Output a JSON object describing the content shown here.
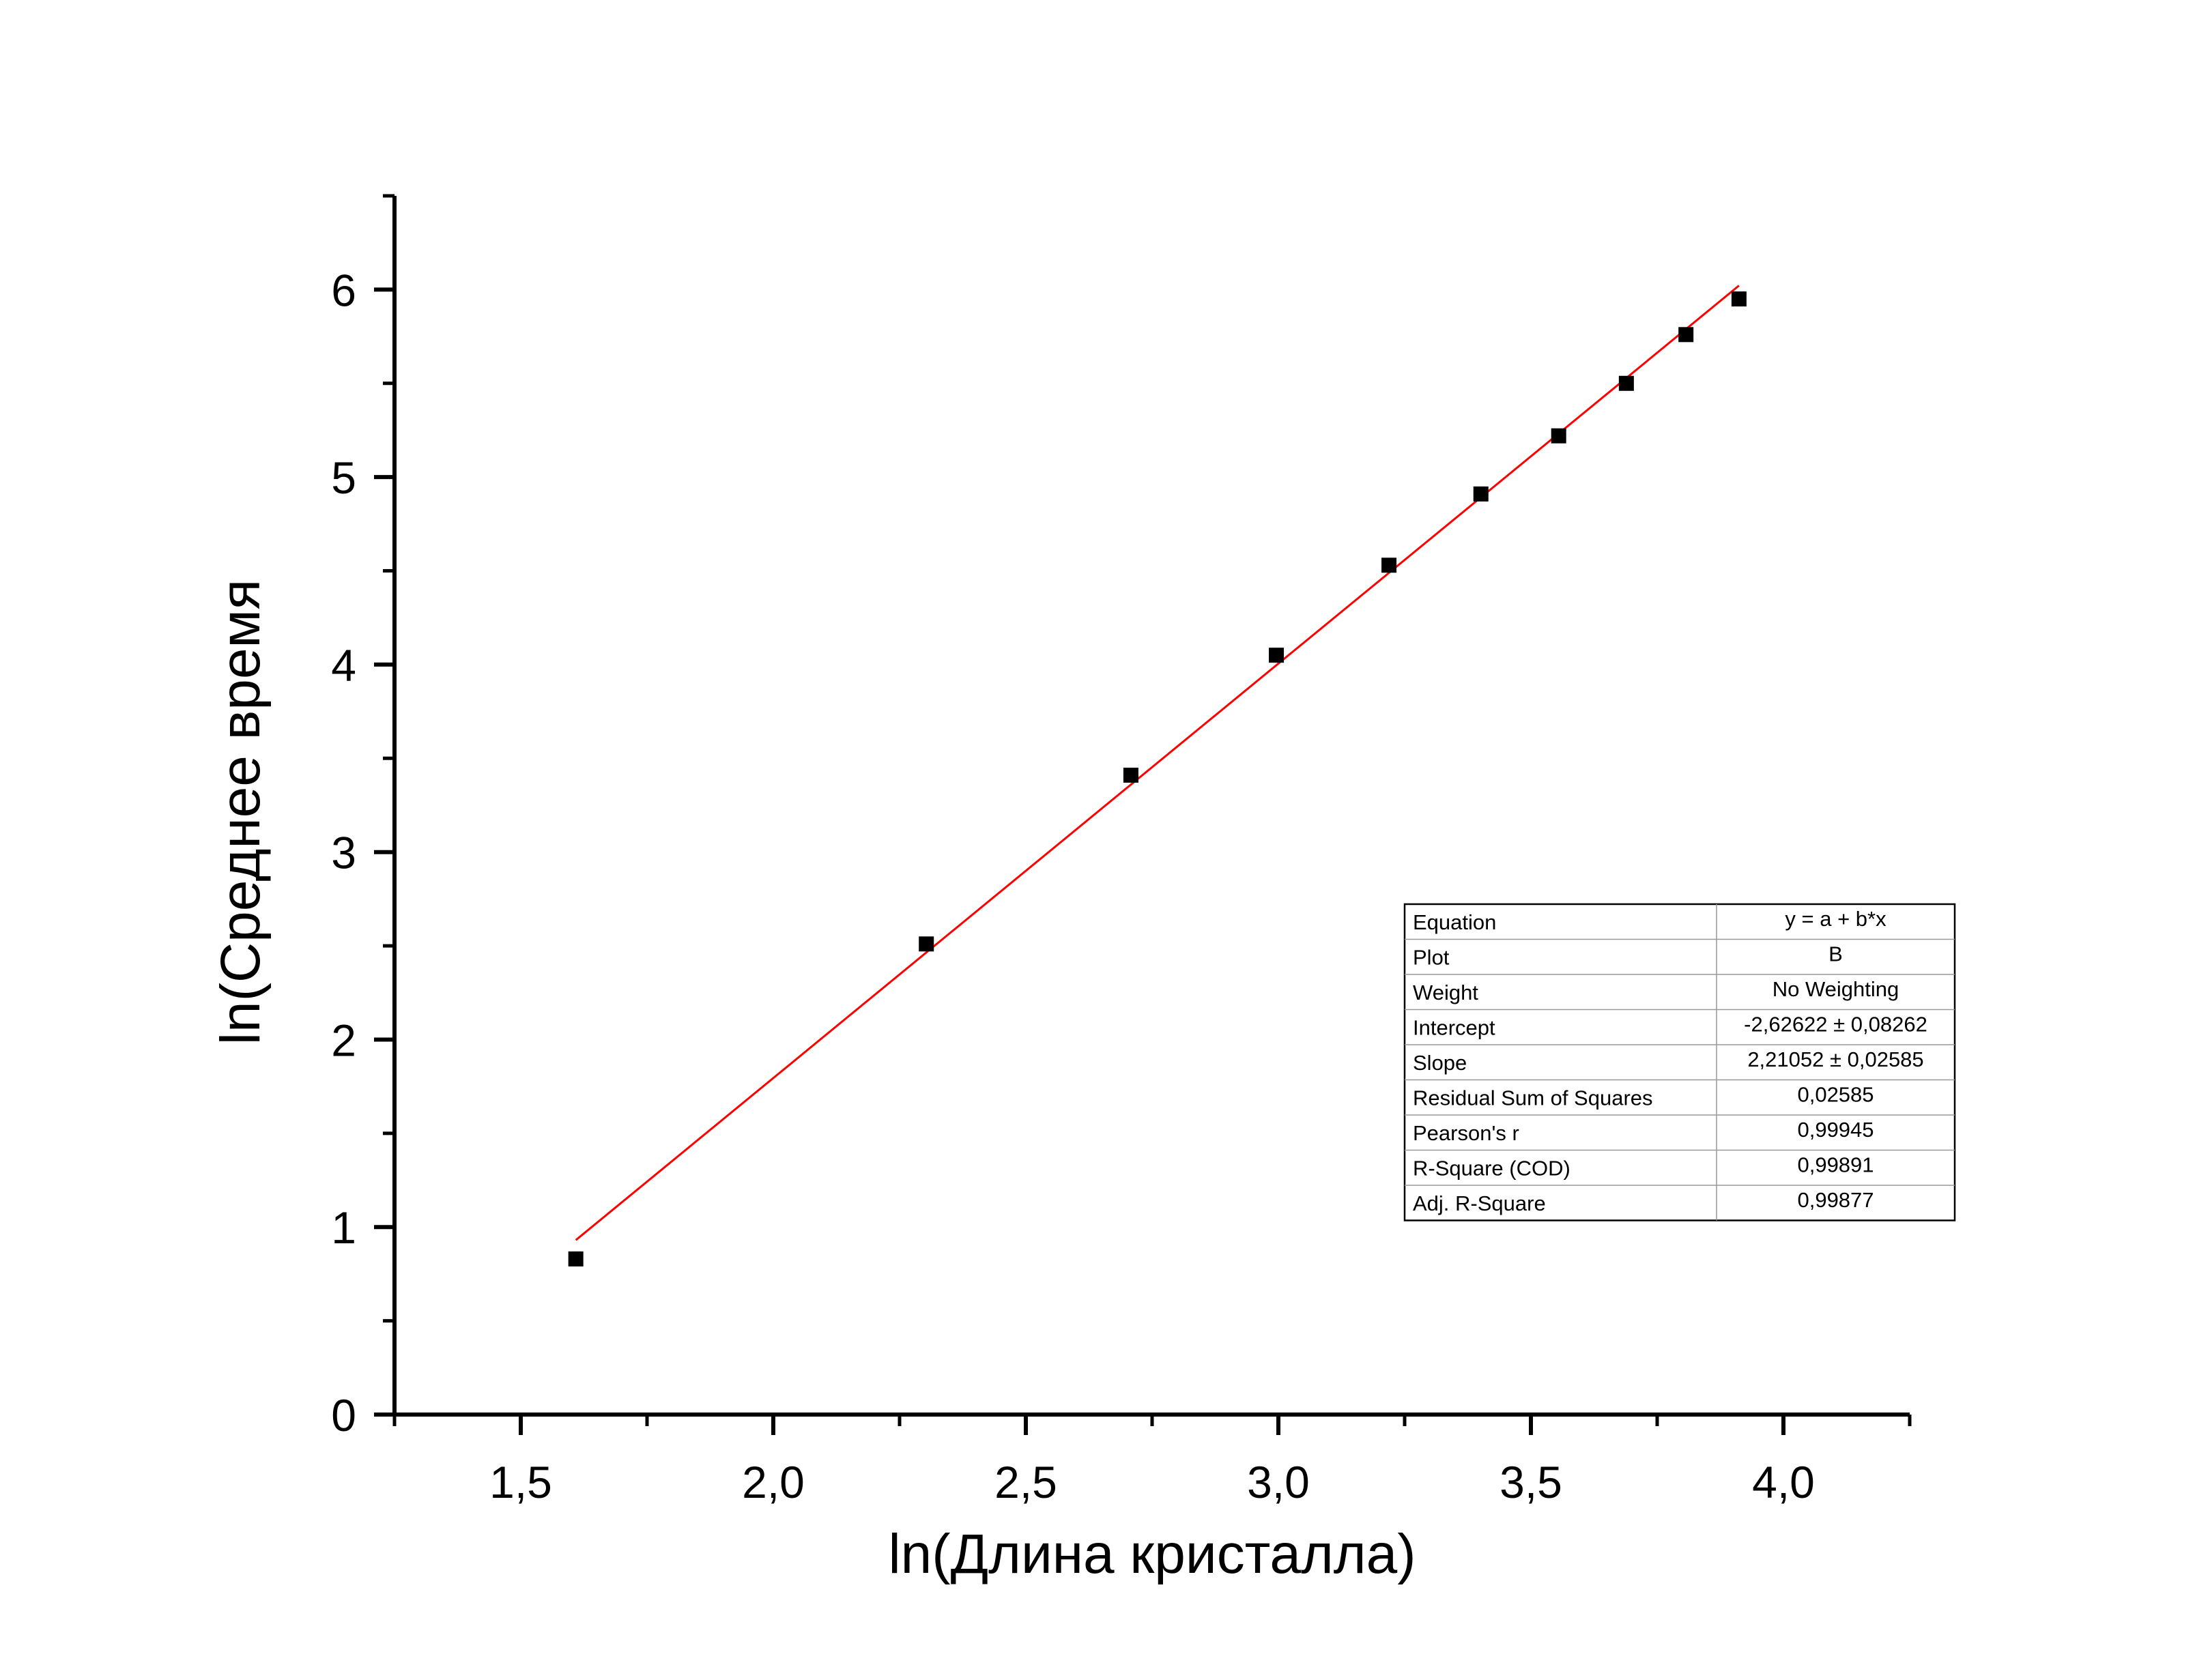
{
  "chart_data": {
    "type": "scatter",
    "xlabel": "ln(Длина кристалла)",
    "ylabel": "ln(Среднее время",
    "xlim": [
      1.25,
      4.25
    ],
    "ylim": [
      0,
      6.5
    ],
    "x_ticks": [
      1.5,
      2.0,
      2.5,
      3.0,
      3.5,
      4.0
    ],
    "x_tick_labels": [
      "1,5",
      "2,0",
      "2,5",
      "3,0",
      "3,5",
      "4,0"
    ],
    "y_ticks": [
      0,
      1,
      2,
      3,
      4,
      5,
      6
    ],
    "y_tick_labels": [
      "0",
      "1",
      "2",
      "3",
      "4",
      "5",
      "6"
    ],
    "grid": false,
    "series": [
      {
        "values_x": [
          1.609,
          2.303,
          2.708,
          2.996,
          3.219,
          3.401,
          3.555,
          3.689,
          3.807,
          3.912
        ],
        "values_y": [
          0.83,
          2.51,
          3.41,
          4.05,
          4.53,
          4.91,
          5.22,
          5.5,
          5.76,
          5.95
        ],
        "color": "#000000",
        "marker": "square"
      }
    ],
    "fit_line": {
      "color": "#ff0000",
      "intercept": -2.62622,
      "slope": 2.21052,
      "x_range": [
        1.609,
        3.912
      ]
    },
    "fit_table": {
      "rows": [
        {
          "label": "Equation",
          "value": "y = a + b*x"
        },
        {
          "label": "Plot",
          "value": "B"
        },
        {
          "label": "Weight",
          "value": "No Weighting"
        },
        {
          "label": "Intercept",
          "value": "-2,62622 ± 0,08262"
        },
        {
          "label": "Slope",
          "value": "2,21052 ± 0,02585"
        },
        {
          "label": "Residual Sum of Squares",
          "value": "0,02585"
        },
        {
          "label": "Pearson's r",
          "value": "0,99945"
        },
        {
          "label": "R-Square (COD)",
          "value": "0,99891"
        },
        {
          "label": "Adj. R-Square",
          "value": "0,99877"
        }
      ]
    }
  }
}
